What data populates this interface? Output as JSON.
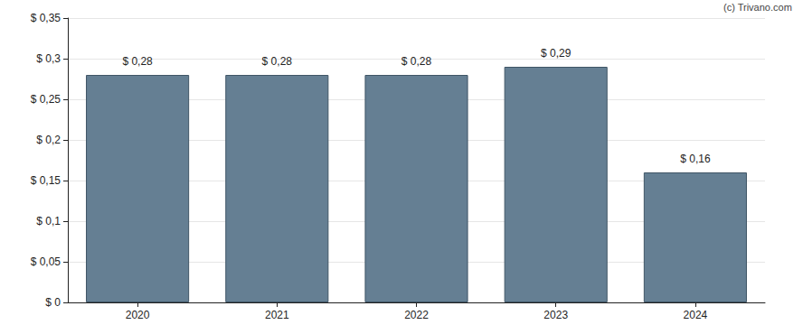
{
  "chart_data": {
    "type": "bar",
    "annotation": "(c) Trivano.com",
    "categories": [
      "2020",
      "2021",
      "2022",
      "2023",
      "2024"
    ],
    "values": [
      0.28,
      0.28,
      0.28,
      0.29,
      0.16
    ],
    "value_labels": [
      "$ 0,28",
      "$ 0,28",
      "$ 0,28",
      "$ 0,29",
      "$ 0,16"
    ],
    "data_labels": true,
    "color": "#657f93",
    "ylim": [
      0,
      0.35
    ],
    "yticks": [
      {
        "value": 0,
        "label": "$ 0"
      },
      {
        "value": 0.05,
        "label": "$ 0,05"
      },
      {
        "value": 0.1,
        "label": "$ 0,1"
      },
      {
        "value": 0.15,
        "label": "$ 0,15"
      },
      {
        "value": 0.2,
        "label": "$ 0,2"
      },
      {
        "value": 0.25,
        "label": "$ 0,25"
      },
      {
        "value": 0.3,
        "label": "$ 0,3"
      },
      {
        "value": 0.35,
        "label": "$ 0,35"
      }
    ],
    "grid": true
  }
}
